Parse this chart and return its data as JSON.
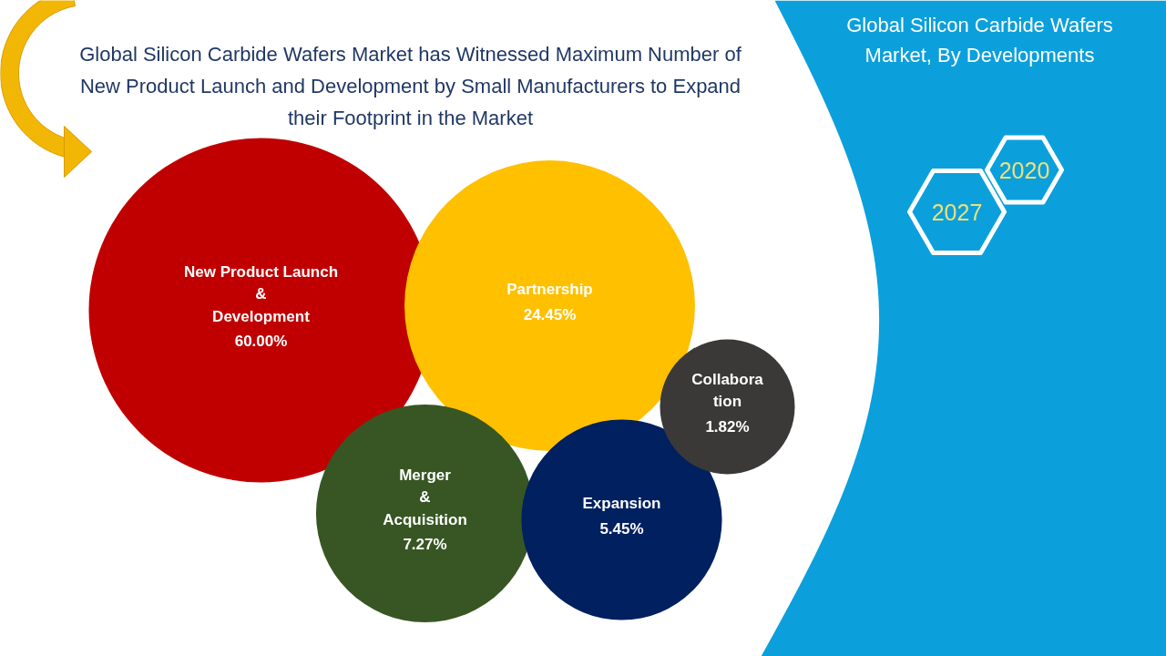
{
  "chart_data": {
    "type": "other",
    "title": "Global Silicon Carbide Wafers Market has Witnessed Maximum Number of New Product Launch and Development by Small Manufacturers to Expand their Footprint in the Market",
    "subtitle": "Global Silicon Carbide Wafers Market, By Developments",
    "categories": [
      "New Product Launch\n&\nDevelopment",
      "Partnership",
      "Merger\n&\nAcquisition",
      "Expansion",
      "Collabora\ntion"
    ],
    "values": [
      60.0,
      24.45,
      7.27,
      5.45,
      1.82
    ],
    "value_labels": [
      "60.00%",
      "24.45%",
      "7.27%",
      "5.45%",
      "1.82%"
    ],
    "colors": [
      "#c00000",
      "#ffc000",
      "#375623",
      "#002060",
      "#3b3838"
    ],
    "annotations": [
      "2020",
      "2027"
    ]
  }
}
